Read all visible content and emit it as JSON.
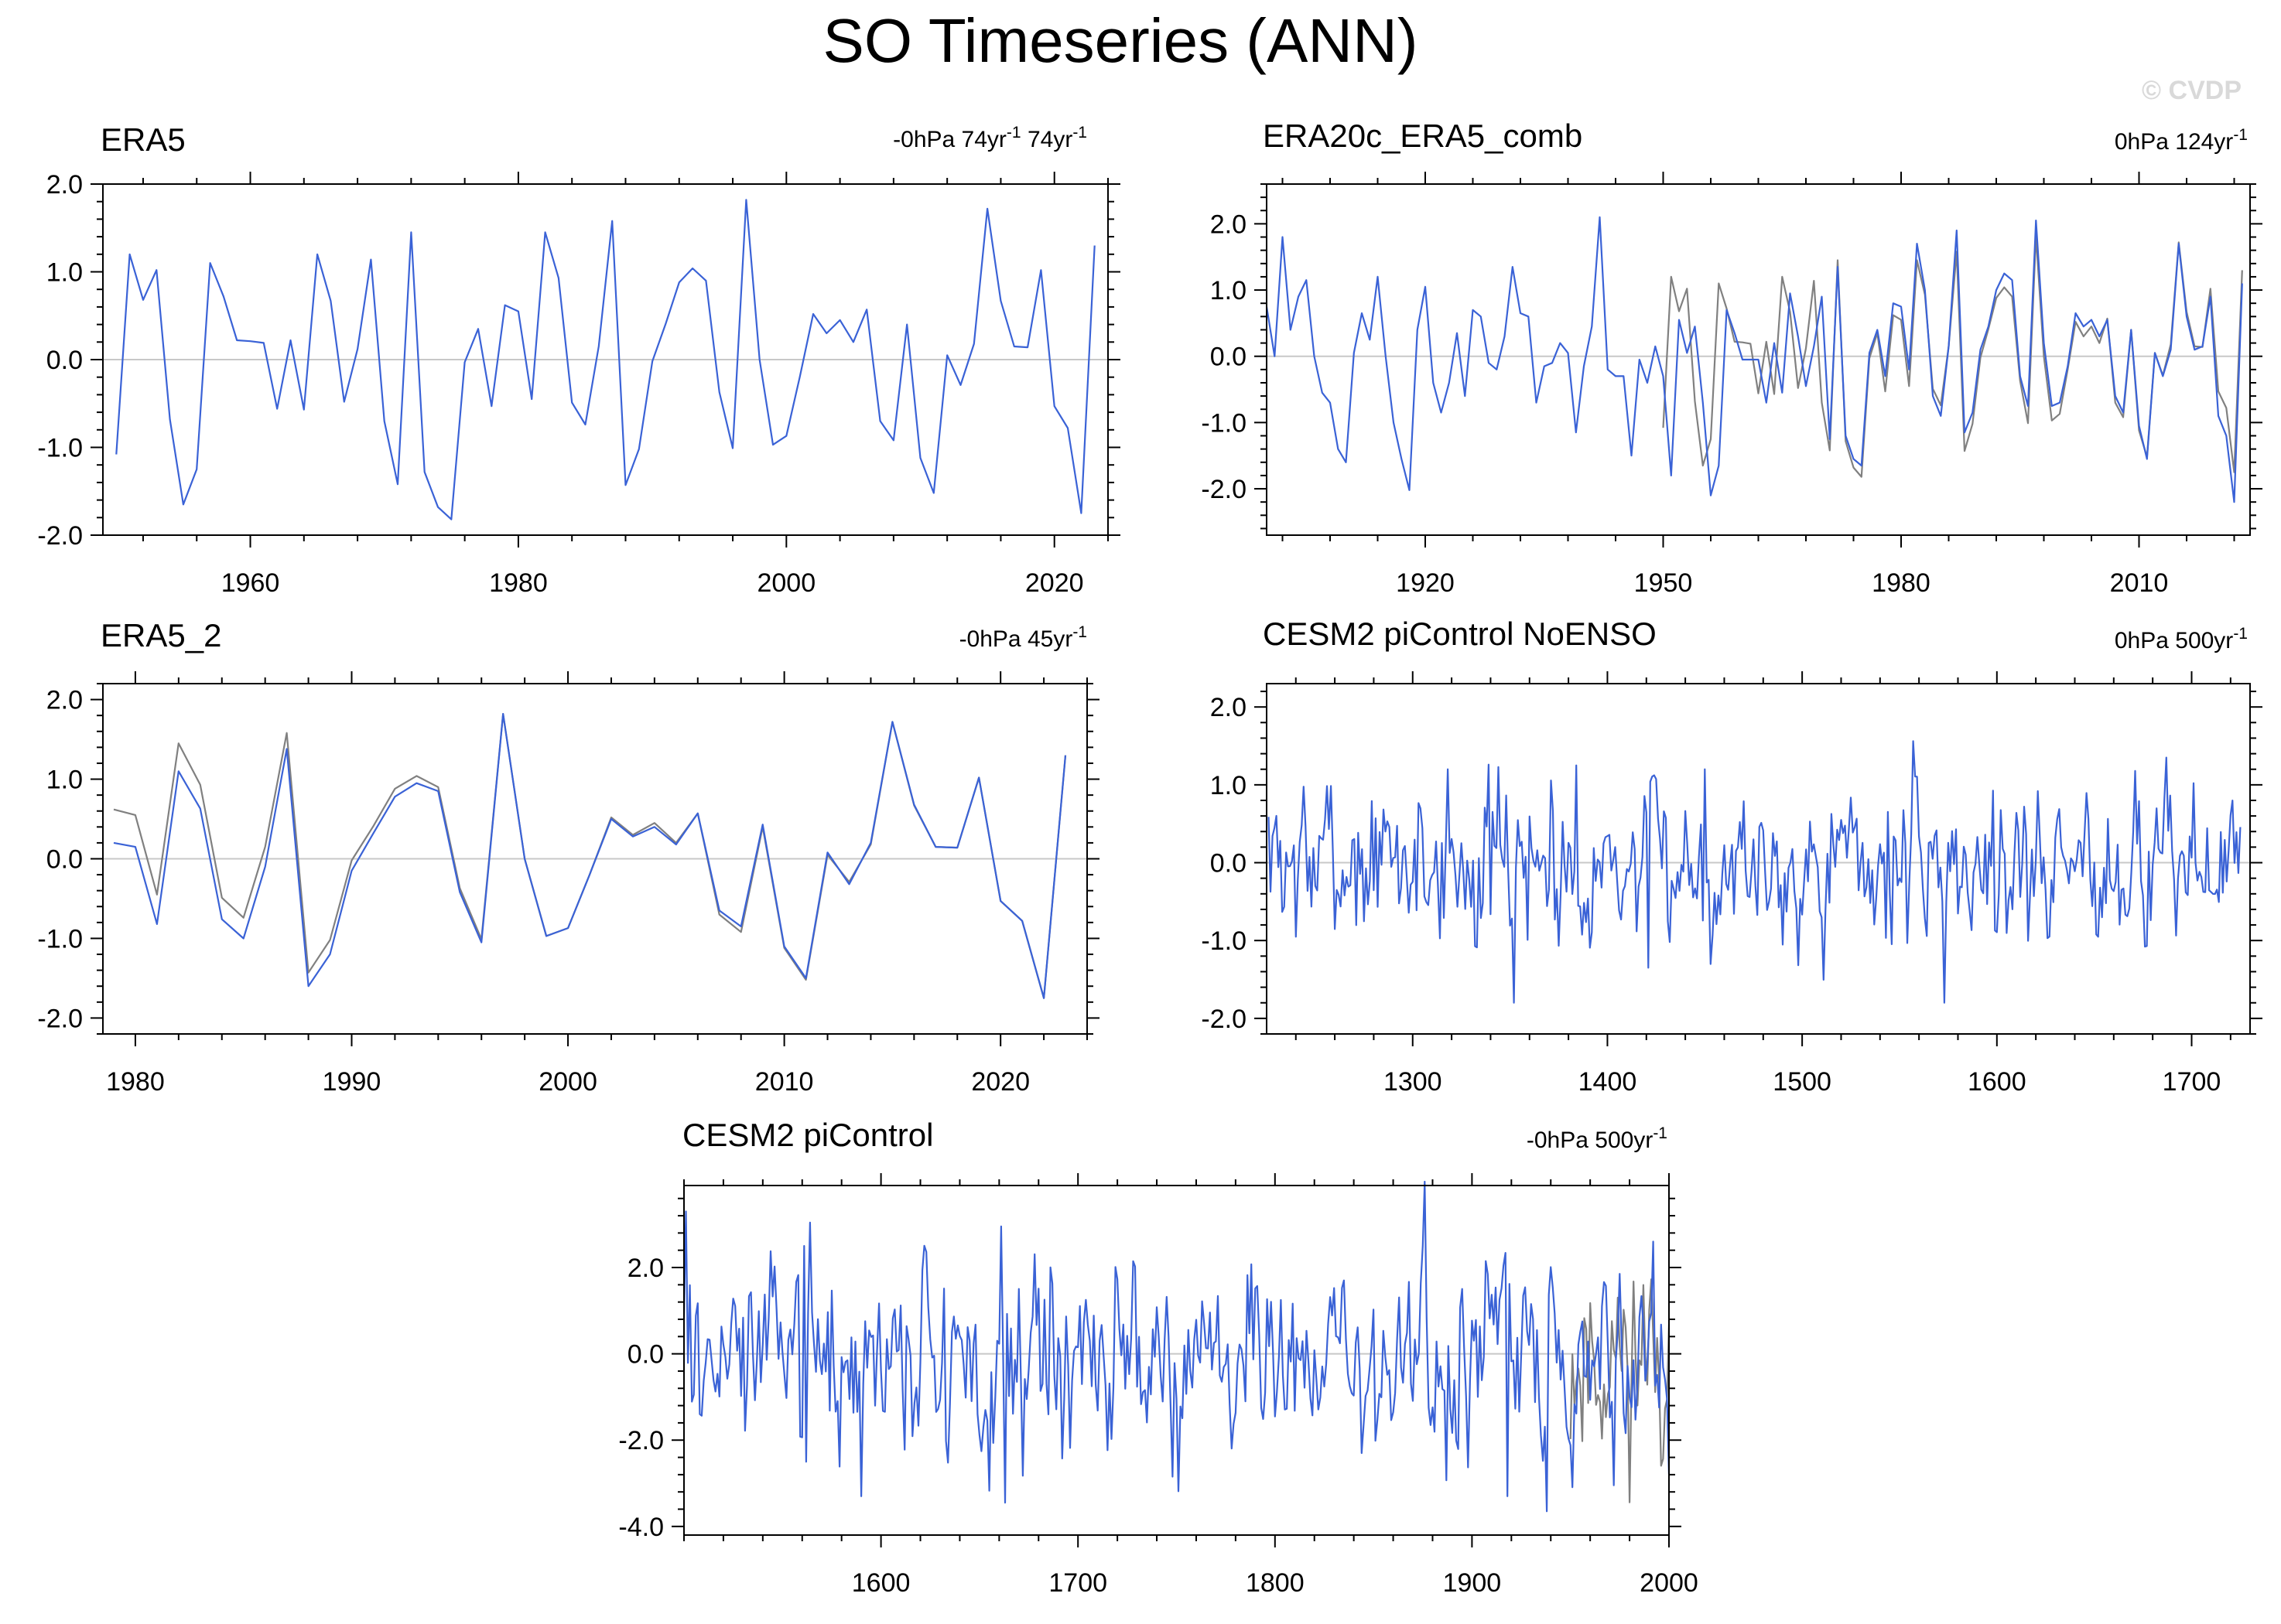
{
  "figure": {
    "title": "SO Timeseries (ANN)",
    "copyright": "© CVDP"
  },
  "colors": {
    "main_series": "#3a62d6",
    "ref_series": "#808080",
    "zero_line": "#c8c8c8",
    "frame": "#000000",
    "copyright": "#d9d9d9"
  },
  "chart_data": [
    {
      "id": "era5",
      "type": "line",
      "title": "ERA5",
      "trend_label": "-0hPa 74yr",
      "trend_label2": " 74yr",
      "trend_sup": "-1",
      "trend_sup2": "-1",
      "xlim": [
        1949,
        2024
      ],
      "ylim": [
        -2.0,
        2.0
      ],
      "yticks": [
        -2.0,
        -1.0,
        0.0,
        1.0,
        2.0
      ],
      "ytick_labels": [
        "-2.0",
        "-1.0",
        "0.0",
        "1.0",
        "2.0"
      ],
      "xticks": [
        1960,
        1980,
        2000,
        2020
      ],
      "xtick_labels": [
        "1960",
        "1980",
        "2000",
        "2020"
      ],
      "series": [
        {
          "name": "ERA5",
          "color": "#3a62d6",
          "x": [
            1950,
            1951,
            1952,
            1953,
            1954,
            1955,
            1956,
            1957,
            1958,
            1959,
            1960,
            1961,
            1962,
            1963,
            1964,
            1965,
            1966,
            1967,
            1968,
            1969,
            1970,
            1971,
            1972,
            1973,
            1974,
            1975,
            1976,
            1977,
            1978,
            1979,
            1980,
            1981,
            1982,
            1983,
            1984,
            1985,
            1986,
            1987,
            1988,
            1989,
            1990,
            1991,
            1992,
            1993,
            1994,
            1995,
            1996,
            1997,
            1998,
            1999,
            2000,
            2001,
            2002,
            2003,
            2004,
            2005,
            2006,
            2007,
            2008,
            2009,
            2010,
            2011,
            2012,
            2013,
            2014,
            2015,
            2016,
            2017,
            2018,
            2019,
            2020,
            2021,
            2022,
            2023
          ],
          "values": [
            -1.08,
            1.2,
            0.68,
            1.02,
            -0.68,
            -1.65,
            -1.25,
            1.1,
            0.72,
            0.22,
            0.21,
            0.19,
            -0.56,
            0.22,
            -0.57,
            1.2,
            0.67,
            -0.48,
            0.12,
            1.14,
            -0.7,
            -1.42,
            1.45,
            -1.28,
            -1.68,
            -1.82,
            -0.03,
            0.35,
            -0.53,
            0.62,
            0.55,
            -0.45,
            1.45,
            0.93,
            -0.49,
            -0.74,
            0.15,
            1.58,
            -1.43,
            -1.02,
            -0.02,
            0.41,
            0.88,
            1.04,
            0.9,
            -0.37,
            -1.01,
            1.82,
            0.0,
            -0.97,
            -0.87,
            -0.2,
            0.52,
            0.3,
            0.45,
            0.2,
            0.57,
            -0.7,
            -0.92,
            0.4,
            -1.12,
            -1.52,
            0.05,
            -0.29,
            0.18,
            1.72,
            0.67,
            0.15,
            0.14,
            1.02,
            -0.53,
            -0.78,
            -1.75,
            1.3
          ]
        }
      ]
    },
    {
      "id": "era20c",
      "type": "line",
      "title": "ERA20c_ERA5_comb",
      "trend_label": "0hPa 124yr",
      "trend_sup": "-1",
      "xlim": [
        1900,
        2024
      ],
      "ylim": [
        -2.7,
        2.6
      ],
      "yticks": [
        -2.0,
        -1.0,
        0.0,
        1.0,
        2.0
      ],
      "ytick_labels": [
        "-2.0",
        "-1.0",
        "0.0",
        "1.0",
        "2.0"
      ],
      "xticks": [
        1920,
        1950,
        1980,
        2010
      ],
      "xtick_labels": [
        "1920",
        "1950",
        "1980",
        "2010"
      ],
      "series": [
        {
          "name": "Reference",
          "color": "#808080",
          "x": [
            1950,
            1951,
            1952,
            1953,
            1954,
            1955,
            1956,
            1957,
            1958,
            1959,
            1960,
            1961,
            1962,
            1963,
            1964,
            1965,
            1966,
            1967,
            1968,
            1969,
            1970,
            1971,
            1972,
            1973,
            1974,
            1975,
            1976,
            1977,
            1978,
            1979,
            1980,
            1981,
            1982,
            1983,
            1984,
            1985,
            1986,
            1987,
            1988,
            1989,
            1990,
            1991,
            1992,
            1993,
            1994,
            1995,
            1996,
            1997,
            1998,
            1999,
            2000,
            2001,
            2002,
            2003,
            2004,
            2005,
            2006,
            2007,
            2008,
            2009,
            2010,
            2011,
            2012,
            2013,
            2014,
            2015,
            2016,
            2017,
            2018,
            2019,
            2020,
            2021,
            2022,
            2023
          ],
          "values": [
            -1.08,
            1.2,
            0.68,
            1.02,
            -0.68,
            -1.65,
            -1.25,
            1.1,
            0.72,
            0.22,
            0.21,
            0.19,
            -0.56,
            0.22,
            -0.57,
            1.2,
            0.67,
            -0.48,
            0.12,
            1.14,
            -0.7,
            -1.42,
            1.45,
            -1.28,
            -1.68,
            -1.82,
            -0.03,
            0.35,
            -0.53,
            0.62,
            0.55,
            -0.45,
            1.45,
            0.93,
            -0.49,
            -0.74,
            0.15,
            1.58,
            -1.43,
            -1.02,
            -0.02,
            0.41,
            0.88,
            1.04,
            0.9,
            -0.37,
            -1.01,
            1.82,
            0.0,
            -0.97,
            -0.87,
            -0.2,
            0.52,
            0.3,
            0.45,
            0.2,
            0.57,
            -0.7,
            -0.92,
            0.4,
            -1.12,
            -1.52,
            0.05,
            -0.29,
            0.18,
            1.72,
            0.67,
            0.15,
            0.14,
            1.02,
            -0.53,
            -0.78,
            -1.75,
            1.3
          ]
        },
        {
          "name": "ERA20c_ERA5_comb",
          "color": "#3a62d6",
          "x": [
            1900,
            1901,
            1902,
            1903,
            1904,
            1905,
            1906,
            1907,
            1908,
            1909,
            1910,
            1911,
            1912,
            1913,
            1914,
            1915,
            1916,
            1917,
            1918,
            1919,
            1920,
            1921,
            1922,
            1923,
            1924,
            1925,
            1926,
            1927,
            1928,
            1929,
            1930,
            1931,
            1932,
            1933,
            1934,
            1935,
            1936,
            1937,
            1938,
            1939,
            1940,
            1941,
            1942,
            1943,
            1944,
            1945,
            1946,
            1947,
            1948,
            1949,
            1950,
            1951,
            1952,
            1953,
            1954,
            1955,
            1956,
            1957,
            1958,
            1959,
            1960,
            1961,
            1962,
            1963,
            1964,
            1965,
            1966,
            1967,
            1968,
            1969,
            1970,
            1971,
            1972,
            1973,
            1974,
            1975,
            1976,
            1977,
            1978,
            1979,
            1980,
            1981,
            1982,
            1983,
            1984,
            1985,
            1986,
            1987,
            1988,
            1989,
            1990,
            1991,
            1992,
            1993,
            1994,
            1995,
            1996,
            1997,
            1998,
            1999,
            2000,
            2001,
            2002,
            2003,
            2004,
            2005,
            2006,
            2007,
            2008,
            2009,
            2010,
            2011,
            2012,
            2013,
            2014,
            2015,
            2016,
            2017,
            2018,
            2019,
            2020,
            2021,
            2022,
            2023
          ],
          "values": [
            0.75,
            0.0,
            1.8,
            0.4,
            0.9,
            1.15,
            0.0,
            -0.55,
            -0.7,
            -1.4,
            -1.6,
            0.05,
            0.65,
            0.25,
            1.2,
            0.0,
            -1.0,
            -1.55,
            -2.02,
            0.4,
            1.05,
            -0.4,
            -0.85,
            -0.4,
            0.35,
            -0.6,
            0.7,
            0.6,
            -0.1,
            -0.2,
            0.3,
            1.35,
            0.65,
            0.6,
            -0.7,
            -0.15,
            -0.1,
            0.2,
            0.05,
            -1.15,
            -0.15,
            0.45,
            2.1,
            -0.2,
            -0.3,
            -0.3,
            -1.5,
            -0.05,
            -0.4,
            0.15,
            -0.3,
            -1.8,
            0.55,
            0.05,
            0.45,
            -0.7,
            -2.1,
            -1.65,
            0.7,
            0.35,
            -0.05,
            -0.05,
            -0.05,
            -0.7,
            0.2,
            -0.55,
            0.95,
            0.3,
            -0.45,
            0.15,
            0.9,
            -1.25,
            1.35,
            -1.2,
            -1.55,
            -1.65,
            0.05,
            0.4,
            -0.3,
            0.8,
            0.75,
            -0.2,
            1.7,
            1.0,
            -0.6,
            -0.9,
            0.15,
            1.9,
            -1.15,
            -0.85,
            0.1,
            0.45,
            1.0,
            1.25,
            1.15,
            -0.3,
            -0.75,
            2.05,
            0.2,
            -0.75,
            -0.7,
            -0.15,
            0.65,
            0.45,
            0.55,
            0.3,
            0.55,
            -0.6,
            -0.85,
            0.4,
            -1.05,
            -1.55,
            0.05,
            -0.3,
            0.1,
            1.7,
            0.6,
            0.1,
            0.15,
            0.9,
            -0.9,
            -1.2,
            -2.2,
            1.1
          ]
        }
      ]
    },
    {
      "id": "era5_2",
      "type": "line",
      "title": "ERA5_2",
      "trend_label": "-0hPa 45yr",
      "trend_sup": "-1",
      "xlim": [
        1978.5,
        2024
      ],
      "ylim": [
        -2.2,
        2.2
      ],
      "yticks": [
        -2.0,
        -1.0,
        0.0,
        1.0,
        2.0
      ],
      "ytick_labels": [
        "-2.0",
        "-1.0",
        "0.0",
        "1.0",
        "2.0"
      ],
      "xticks": [
        1980,
        1990,
        2000,
        2010,
        2020
      ],
      "xtick_labels": [
        "1980",
        "1990",
        "2000",
        "2010",
        "2020"
      ],
      "series": [
        {
          "name": "Reference",
          "color": "#808080",
          "x": [
            1979,
            1980,
            1981,
            1982,
            1983,
            1984,
            1985,
            1986,
            1987,
            1988,
            1989,
            1990,
            1991,
            1992,
            1993,
            1994,
            1995,
            1996,
            1997,
            1998,
            1999,
            2000,
            2001,
            2002,
            2003,
            2004,
            2005,
            2006,
            2007,
            2008,
            2009,
            2010,
            2011,
            2012,
            2013,
            2014,
            2015,
            2016,
            2017,
            2018,
            2019,
            2020,
            2021,
            2022,
            2023
          ],
          "values": [
            0.62,
            0.55,
            -0.45,
            1.45,
            0.93,
            -0.49,
            -0.74,
            0.15,
            1.58,
            -1.43,
            -1.02,
            -0.02,
            0.41,
            0.88,
            1.04,
            0.9,
            -0.37,
            -1.01,
            1.82,
            0.0,
            -0.97,
            -0.87,
            -0.2,
            0.52,
            0.3,
            0.45,
            0.2,
            0.57,
            -0.7,
            -0.92,
            0.4,
            -1.12,
            -1.52,
            0.05,
            -0.29,
            0.18,
            1.72,
            0.67,
            0.15,
            0.14,
            1.02,
            -0.53,
            -0.78,
            -1.75,
            1.3
          ]
        },
        {
          "name": "ERA5_2",
          "color": "#3a62d6",
          "x": [
            1979,
            1980,
            1981,
            1982,
            1983,
            1984,
            1985,
            1986,
            1987,
            1988,
            1989,
            1990,
            1991,
            1992,
            1993,
            1994,
            1995,
            1996,
            1997,
            1998,
            1999,
            2000,
            2001,
            2002,
            2003,
            2004,
            2005,
            2006,
            2007,
            2008,
            2009,
            2010,
            2011,
            2012,
            2013,
            2014,
            2015,
            2016,
            2017,
            2018,
            2019,
            2020,
            2021,
            2022,
            2023
          ],
          "values": [
            0.2,
            0.15,
            -0.82,
            1.1,
            0.63,
            -0.76,
            -1.0,
            -0.1,
            1.38,
            -1.6,
            -1.2,
            -0.15,
            0.32,
            0.78,
            0.95,
            0.85,
            -0.42,
            -1.05,
            1.82,
            0.0,
            -0.97,
            -0.87,
            -0.2,
            0.5,
            0.28,
            0.4,
            0.18,
            0.57,
            -0.65,
            -0.85,
            0.43,
            -1.1,
            -1.5,
            0.08,
            -0.32,
            0.2,
            1.72,
            0.68,
            0.15,
            0.14,
            1.02,
            -0.53,
            -0.78,
            -1.75,
            1.3
          ]
        }
      ]
    },
    {
      "id": "noenso",
      "type": "line",
      "title": "CESM2 piControl NoENSO",
      "trend_label": "0hPa 500yr",
      "trend_sup": "-1",
      "xlim": [
        1225,
        1730
      ],
      "ylim": [
        -2.2,
        2.3
      ],
      "yticks": [
        -2.0,
        -1.0,
        0.0,
        1.0,
        2.0
      ],
      "ytick_labels": [
        "-2.0",
        "-1.0",
        "0.0",
        "1.0",
        "2.0"
      ],
      "xticks": [
        1300,
        1400,
        1500,
        1600,
        1700
      ],
      "xtick_labels": [
        "1300",
        "1400",
        "1500",
        "1600",
        "1700"
      ],
      "series": [
        {
          "name": "CESM2 piControl NoENSO",
          "color": "#3a62d6",
          "start": 1226,
          "count": 500,
          "amplitude": 0.5,
          "seed": 7,
          "extremes": [
            [
              1352,
              -1.8
            ],
            [
              1573,
              -1.8
            ],
            [
              1421,
              -1.35
            ],
            [
              1687,
              1.35
            ],
            [
              1318,
              1.2
            ],
            [
              1450,
              1.2
            ],
            [
              1384,
              1.25
            ]
          ]
        }
      ]
    },
    {
      "id": "picontrol",
      "type": "line",
      "title": "CESM2 piControl",
      "trend_label": "-0hPa 500yr",
      "trend_sup": "-1",
      "xlim": [
        1500,
        2000
      ],
      "ylim": [
        -4.2,
        3.9
      ],
      "yticks": [
        -4.0,
        -2.0,
        0.0,
        2.0
      ],
      "ytick_labels": [
        "-4.0",
        "-2.0",
        "0.0",
        "2.0"
      ],
      "xticks": [
        1600,
        1700,
        1800,
        1900,
        2000
      ],
      "xtick_labels": [
        "1600",
        "1700",
        "1800",
        "1900",
        "2000"
      ],
      "series": [
        {
          "name": "Reference",
          "color": "#808080",
          "x_start": 1950,
          "x_end": 2000,
          "amplitude": 1.1,
          "seed": 11
        },
        {
          "name": "CESM2 piControl",
          "color": "#3a62d6",
          "start": 1500,
          "count": 501,
          "amplitude": 1.1,
          "seed": 3,
          "extremes": [
            [
              1501,
              3.3
            ],
            [
              1663,
              -3.45
            ],
            [
              1938,
              -3.65
            ],
            [
              1590,
              -3.3
            ],
            [
              1918,
              -3.3
            ],
            [
              1992,
              2.6
            ],
            [
              2000,
              -2.8
            ],
            [
              1561,
              2.5
            ]
          ]
        }
      ]
    }
  ]
}
